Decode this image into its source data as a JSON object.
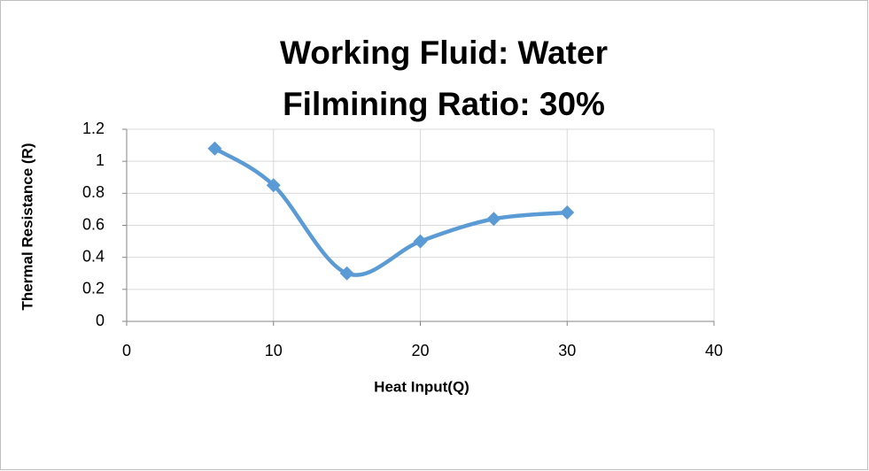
{
  "chart_data": {
    "type": "line",
    "title": [
      "Working Fluid: Water",
      "Filmining Ratio: 30%"
    ],
    "x_label": "Heat Input(Q)",
    "y_label": "Thermal Resistance (R)",
    "x": [
      6,
      10,
      15,
      20,
      25,
      30
    ],
    "series": [
      {
        "name": "Thermal Resistance (R)",
        "color": "#5b9bd5",
        "values": [
          1.08,
          0.85,
          0.3,
          0.5,
          0.64,
          0.68
        ]
      }
    ],
    "xlim": [
      0,
      40
    ],
    "xticks": [
      0,
      10,
      20,
      30,
      40
    ],
    "ylim": [
      0,
      1.2
    ],
    "yticks": [
      0,
      0.2,
      0.4,
      0.6,
      0.8,
      1,
      1.2
    ],
    "grid": true,
    "smooth": true
  }
}
